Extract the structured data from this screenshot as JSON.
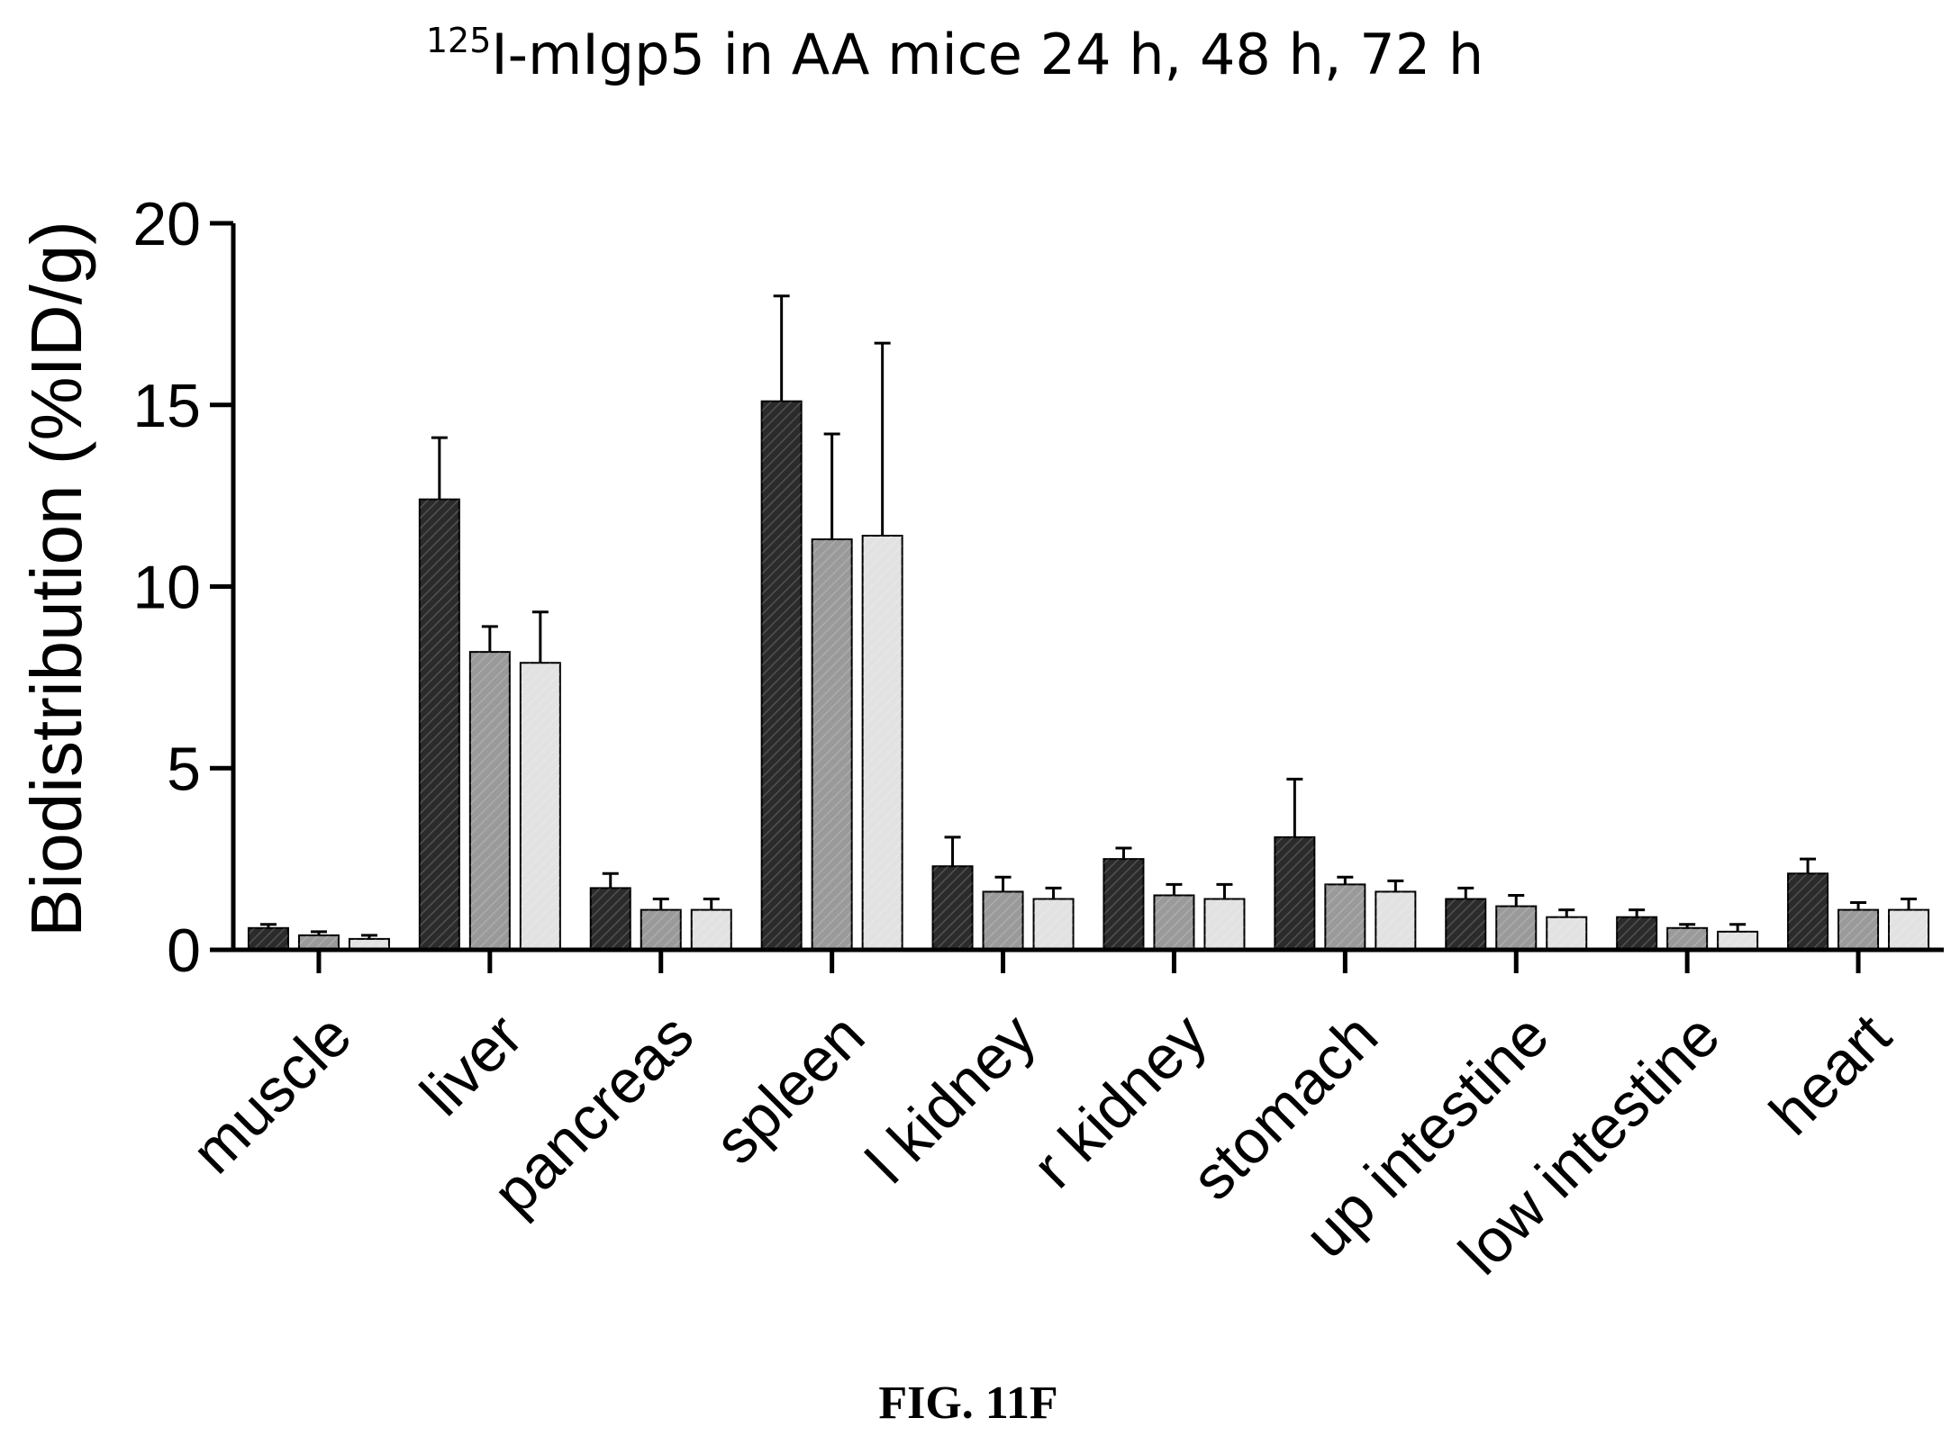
{
  "chart_data": {
    "type": "bar",
    "title_sup": "125",
    "title_main": "I-mIgp5 in AA mice 24 h, 48 h, 72 h",
    "ylabel": "Biodistribution (%ID/g)",
    "xlabel": "",
    "ylim": [
      0,
      20
    ],
    "yticks": [
      "0",
      "5",
      "10",
      "15",
      "20"
    ],
    "categories": [
      "muscle",
      "liver",
      "pancreas",
      "spleen",
      "l kidney",
      "r kidney",
      "stomach",
      "up intestine",
      "low intestine",
      "heart"
    ],
    "series": [
      {
        "values": [
          0.6,
          12.4,
          1.7,
          15.1,
          2.3,
          2.5,
          3.1,
          1.4,
          0.9,
          2.1
        ],
        "errors": [
          0.1,
          1.7,
          0.4,
          2.9,
          0.8,
          0.3,
          1.6,
          0.3,
          0.2,
          0.4
        ],
        "color": "#2b2b2b"
      },
      {
        "values": [
          0.4,
          8.2,
          1.1,
          11.3,
          1.6,
          1.5,
          1.8,
          1.2,
          0.6,
          1.1
        ],
        "errors": [
          0.1,
          0.7,
          0.3,
          2.9,
          0.4,
          0.3,
          0.2,
          0.3,
          0.1,
          0.2
        ],
        "color": "#9a9a9a"
      },
      {
        "values": [
          0.3,
          7.9,
          1.1,
          11.4,
          1.4,
          1.4,
          1.6,
          0.9,
          0.5,
          1.1
        ],
        "errors": [
          0.1,
          1.4,
          0.3,
          5.3,
          0.3,
          0.4,
          0.3,
          0.2,
          0.2,
          0.3
        ],
        "color": "#e2e2e2"
      }
    ],
    "legend": "none",
    "grid": false
  },
  "caption": "FIG. 11F"
}
